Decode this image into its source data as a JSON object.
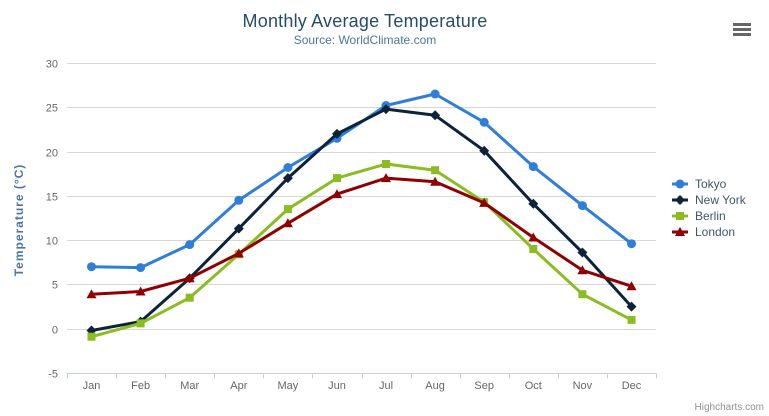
{
  "header": {
    "title": "Monthly Average Temperature",
    "subtitle": "Source: WorldClimate.com"
  },
  "credits": {
    "label": "Highcharts.com"
  },
  "colors": {
    "title": "#274b6d",
    "subtitle": "#4d759e",
    "axis_title": "#4d759e",
    "axis_labels": "#666666",
    "grid": "#d8d8d8",
    "axis_line": "#c0d0e0",
    "legend_text": "#3e576f",
    "credits": "#909090",
    "menu_icon": "#666666"
  },
  "chart_data": {
    "type": "line",
    "title": "Monthly Average Temperature",
    "subtitle": "Source: WorldClimate.com",
    "xlabel": "",
    "ylabel": "Temperature (°C)",
    "ylim": [
      -5,
      30
    ],
    "ytick_step": 5,
    "grid": true,
    "legend_position": "right",
    "categories": [
      "Jan",
      "Feb",
      "Mar",
      "Apr",
      "May",
      "Jun",
      "Jul",
      "Aug",
      "Sep",
      "Oct",
      "Nov",
      "Dec"
    ],
    "series": [
      {
        "name": "Tokyo",
        "color": "#2f7ed8",
        "marker": "circle",
        "values": [
          7.0,
          6.9,
          9.5,
          14.5,
          18.2,
          21.5,
          25.2,
          26.5,
          23.3,
          18.3,
          13.9,
          9.6
        ]
      },
      {
        "name": "New York",
        "color": "#0d233a",
        "marker": "diamond",
        "values": [
          -0.2,
          0.8,
          5.7,
          11.3,
          17.0,
          22.0,
          24.8,
          24.1,
          20.1,
          14.1,
          8.6,
          2.5
        ]
      },
      {
        "name": "Berlin",
        "color": "#8bbc21",
        "marker": "square",
        "values": [
          -0.9,
          0.6,
          3.5,
          8.4,
          13.5,
          17.0,
          18.6,
          17.9,
          14.3,
          9.0,
          3.9,
          1.0
        ]
      },
      {
        "name": "London",
        "color": "#910000",
        "marker": "triangle",
        "values": [
          3.9,
          4.2,
          5.7,
          8.5,
          11.9,
          15.2,
          17.0,
          16.6,
          14.2,
          10.3,
          6.6,
          4.8
        ]
      }
    ]
  }
}
